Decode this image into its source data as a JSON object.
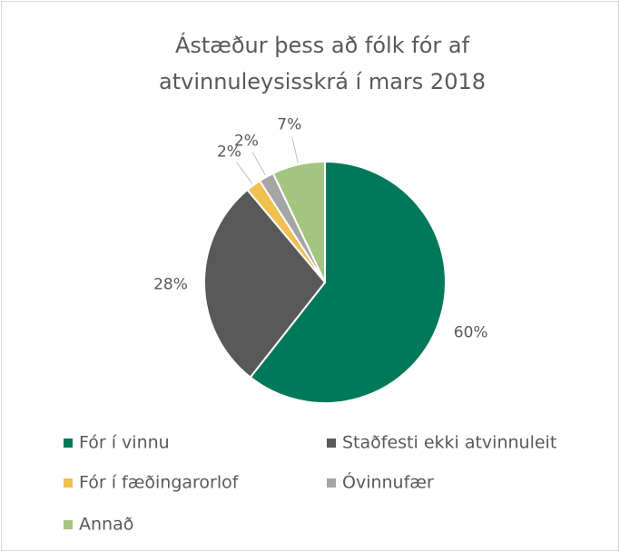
{
  "chart_data": {
    "type": "pie",
    "title": "Ástæður þess að fólk fór af atvinnuleysisskrá í mars 2018",
    "categories": [
      "Fór í vinnu",
      "Staðfesti ekki atvinnuleit",
      "Fór í fæðingarorlof",
      "Óvinnufær",
      "Annað"
    ],
    "values": [
      60,
      28,
      2,
      2,
      7
    ],
    "value_labels": [
      "60%",
      "28%",
      "2%",
      "2%",
      "7%"
    ],
    "colors": [
      "#00785a",
      "#595959",
      "#f0c050",
      "#a5a5a5",
      "#a3c57f"
    ],
    "legend": "bottom"
  }
}
